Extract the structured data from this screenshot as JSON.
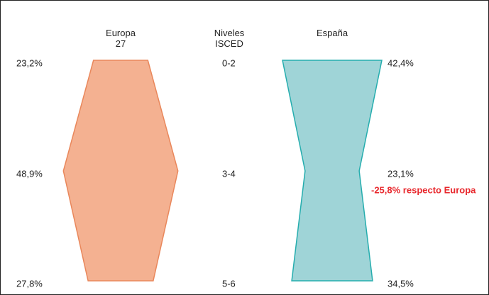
{
  "chart_data": {
    "type": "profile",
    "category_title": "Niveles ISCED",
    "categories": [
      "0-2",
      "3-4",
      "5-6"
    ],
    "series": [
      {
        "name": "Europa 27",
        "color": "#f4b191",
        "stroke": "#e9875b",
        "values": [
          23.2,
          48.9,
          27.8
        ],
        "value_labels": [
          "23,2%",
          "48,9%",
          "27,8%"
        ]
      },
      {
        "name": "España",
        "color": "#9fd4d7",
        "stroke": "#25adae",
        "values": [
          42.4,
          23.1,
          34.5
        ],
        "value_labels": [
          "42,4%",
          "23,1%",
          "34,5%"
        ]
      }
    ],
    "annotation": {
      "text": "-25,8% respecto Europa",
      "color": "#e8282d"
    }
  }
}
